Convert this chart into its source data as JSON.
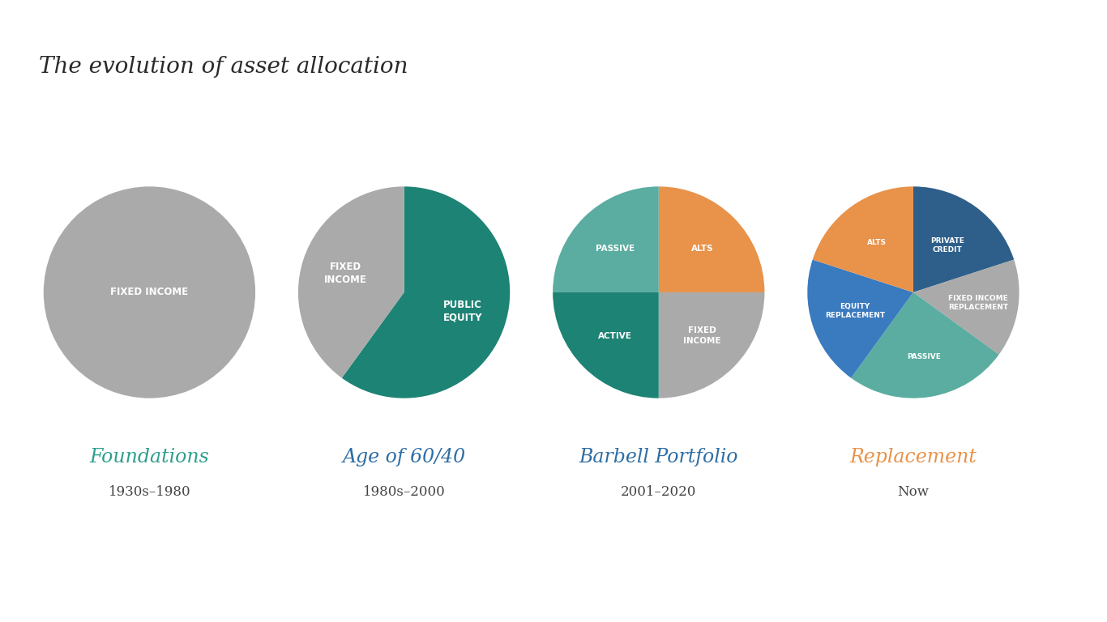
{
  "title": "The evolution of asset allocation",
  "title_font": 20,
  "background_color": "#ffffff",
  "charts": [
    {
      "label": "Foundations",
      "sublabel": "1930s–1980",
      "label_color": "#2e9e8e",
      "sublabel_color": "#444444",
      "slices": [
        100
      ],
      "slice_labels": [
        "FIXED INCOME"
      ],
      "slice_colors": [
        "#aaaaaa"
      ],
      "text_colors": [
        "#ffffff"
      ],
      "startangle": 90,
      "counterclock": false,
      "label_r": [
        0.0
      ]
    },
    {
      "label": "Age of 60/40",
      "sublabel": "1980s–2000",
      "label_color": "#2e6da4",
      "sublabel_color": "#444444",
      "slices": [
        60,
        40
      ],
      "slice_labels": [
        "PUBLIC\nEQUITY",
        "FIXED\nINCOME"
      ],
      "slice_colors": [
        "#1d8374",
        "#aaaaaa"
      ],
      "text_colors": [
        "#ffffff",
        "#ffffff"
      ],
      "startangle": 90,
      "counterclock": false,
      "label_r": [
        0.58,
        0.58
      ]
    },
    {
      "label": "Barbell Portfolio",
      "sublabel": "2001–2020",
      "label_color": "#2e6da4",
      "sublabel_color": "#444444",
      "slices": [
        25,
        25,
        25,
        25
      ],
      "slice_labels": [
        "ALTS",
        "FIXED\nINCOME",
        "ACTIVE",
        "PASSIVE"
      ],
      "slice_colors": [
        "#e8924a",
        "#aaaaaa",
        "#1d8374",
        "#5aada0"
      ],
      "text_colors": [
        "#ffffff",
        "#ffffff",
        "#ffffff",
        "#ffffff"
      ],
      "startangle": 90,
      "counterclock": false,
      "label_r": [
        0.58,
        0.58,
        0.58,
        0.58
      ]
    },
    {
      "label": "Replacement",
      "sublabel": "Now",
      "label_color": "#e8924a",
      "sublabel_color": "#444444",
      "slices": [
        20,
        15,
        25,
        20,
        20
      ],
      "slice_labels": [
        "PRIVATE\nCREDIT",
        "FIXED INCOME\nREPLACEMENT",
        "PASSIVE",
        "EQUITY\nREPLACEMENT",
        "ALTS"
      ],
      "slice_colors": [
        "#2e5f8a",
        "#aaaaaa",
        "#5aada0",
        "#3a7abf",
        "#e8924a"
      ],
      "text_colors": [
        "#ffffff",
        "#ffffff",
        "#ffffff",
        "#ffffff",
        "#ffffff"
      ],
      "startangle": 90,
      "counterclock": false,
      "label_r": [
        0.55,
        0.62,
        0.62,
        0.58,
        0.58
      ]
    }
  ]
}
